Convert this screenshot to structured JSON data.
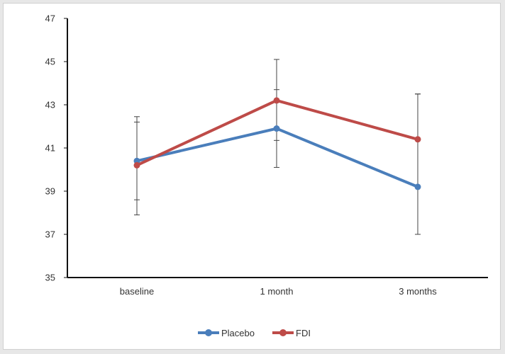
{
  "chart_data": {
    "type": "line",
    "title": "",
    "xlabel": "",
    "ylabel": "",
    "categories": [
      "baseline",
      "1 month",
      "3 months"
    ],
    "ylim": [
      35,
      47
    ],
    "yticks": [
      35,
      37,
      39,
      41,
      43,
      45,
      47
    ],
    "grid": false,
    "legend_position": "bottom-center",
    "series": [
      {
        "name": "Placebo",
        "color": "#4a7ebb",
        "values": [
          40.4,
          41.9,
          39.2
        ],
        "error_low": [
          37.9,
          40.1,
          37.0
        ],
        "error_high": [
          42.2,
          43.7,
          43.5
        ]
      },
      {
        "name": "FDI",
        "color": "#be4b48",
        "values": [
          40.2,
          43.2,
          41.4
        ],
        "error_low": [
          38.6,
          41.35,
          37.0
        ],
        "error_high": [
          42.45,
          45.1,
          43.5
        ]
      }
    ]
  }
}
